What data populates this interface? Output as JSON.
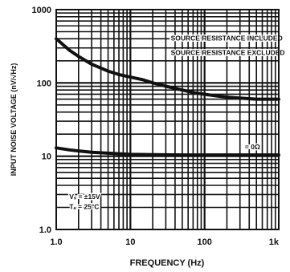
{
  "chart_data": {
    "type": "line",
    "title": "",
    "xlabel": "FREQUENCY (Hz)",
    "ylabel": "INPUT NOISE VOLTAGE (nV/√Hz)",
    "xscale": "log",
    "yscale": "log",
    "xlim": [
      1,
      1000
    ],
    "ylim": [
      1,
      1000
    ],
    "grid": true,
    "x_ticks": [
      "1.0",
      "10",
      "100",
      "1k"
    ],
    "y_ticks": [
      "1.0",
      "10",
      "100",
      "1000"
    ],
    "series": [
      {
        "x": [
          1,
          1.5,
          2,
          3,
          5,
          7,
          10,
          15,
          20,
          30,
          50,
          70,
          100,
          150,
          200,
          300,
          500,
          700,
          1000
        ],
        "y": [
          400,
          280,
          230,
          180,
          145,
          130,
          120,
          110,
          100,
          90,
          80,
          74,
          70,
          66,
          64,
          62,
          60,
          60,
          60
        ]
      },
      {
        "x": [
          1,
          1.5,
          2,
          3,
          5,
          7,
          10,
          20,
          50,
          100,
          200,
          500,
          1000
        ],
        "y": [
          13,
          12.2,
          11.8,
          11.3,
          11,
          10.8,
          10.6,
          10.5,
          10.4,
          10.4,
          10.4,
          10.4,
          10.4
        ]
      }
    ],
    "annotations": [
      {
        "text": "SOURCE RESISTANCE INCLUDED",
        "x": 35,
        "y": 380
      },
      {
        "text": "SOURCE RESISTANCE EXCLUDED",
        "x": 35,
        "y": 240
      },
      {
        "text": "= 0Ω",
        "x": 350,
        "y": 12.5
      },
      {
        "text": "Vₛ = ±15V",
        "x": 1.5,
        "y": 2.6
      },
      {
        "text": "Tₐ = 25°C",
        "x": 1.5,
        "y": 1.9
      }
    ]
  }
}
